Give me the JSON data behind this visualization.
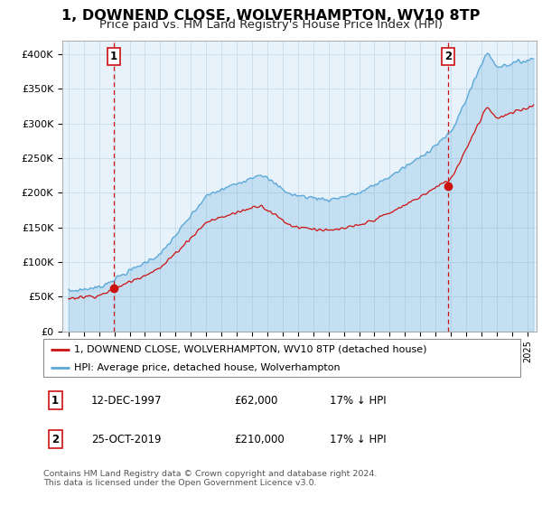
{
  "title": "1, DOWNEND CLOSE, WOLVERHAMPTON, WV10 8TP",
  "subtitle": "Price paid vs. HM Land Registry's House Price Index (HPI)",
  "title_fontsize": 11.5,
  "subtitle_fontsize": 9.5,
  "ylim": [
    0,
    420000
  ],
  "yticks": [
    0,
    50000,
    100000,
    150000,
    200000,
    250000,
    300000,
    350000,
    400000
  ],
  "ytick_labels": [
    "£0",
    "£50K",
    "£100K",
    "£150K",
    "£200K",
    "£250K",
    "£300K",
    "£350K",
    "£400K"
  ],
  "hpi_color": "#5aa8d8",
  "hpi_fill_color": "#ddeef8",
  "price_color": "#cc1111",
  "marker_color": "#cc1111",
  "dashed_line_color": "#cc1111",
  "transaction1_year": 1997.95,
  "transaction1_price": 62000,
  "transaction2_year": 2019.8,
  "transaction2_price": 210000,
  "legend_line1": "1, DOWNEND CLOSE, WOLVERHAMPTON, WV10 8TP (detached house)",
  "legend_line2": "HPI: Average price, detached house, Wolverhampton",
  "table_row1": [
    "1",
    "12-DEC-1997",
    "£62,000",
    "17% ↓ HPI"
  ],
  "table_row2": [
    "2",
    "25-OCT-2019",
    "£210,000",
    "17% ↓ HPI"
  ],
  "footnote": "Contains HM Land Registry data © Crown copyright and database right 2024.\nThis data is licensed under the Open Government Licence v3.0.",
  "bg_color": "#ffffff",
  "plot_bg_color": "#e8f2fa",
  "grid_color": "#c8dce8"
}
